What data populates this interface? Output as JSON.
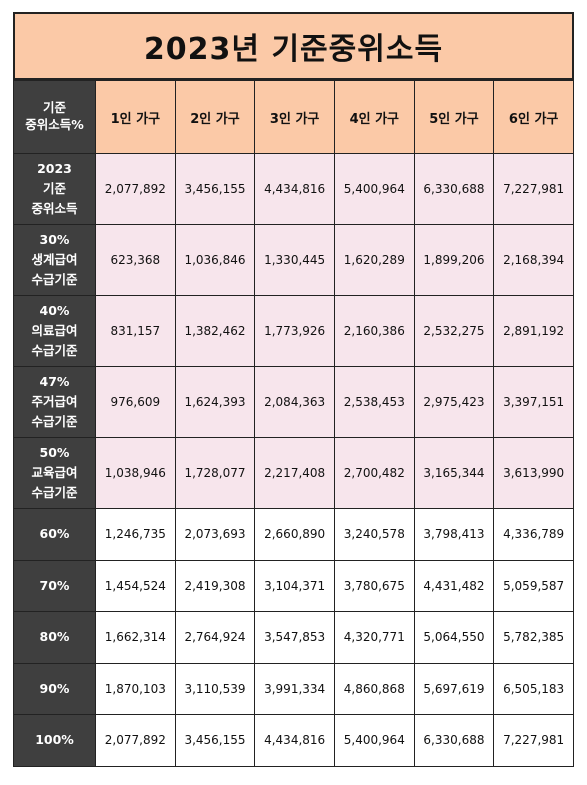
{
  "title": "2023년 기준중위소득",
  "corner_label": [
    "기준",
    "중위소득%"
  ],
  "columns": [
    "1인 가구",
    "2인 가구",
    "3인 가구",
    "4인 가구",
    "5인 가구",
    "6인 가구"
  ],
  "rows": [
    {
      "label": [
        "2023",
        "기준",
        "중위소득"
      ],
      "values": [
        "2,077,892",
        "3,456,155",
        "4,434,816",
        "5,400,964",
        "6,330,688",
        "7,227,981"
      ]
    },
    {
      "label": [
        "30%",
        "생계급여",
        "수급기준"
      ],
      "values": [
        "623,368",
        "1,036,846",
        "1,330,445",
        "1,620,289",
        "1,899,206",
        "2,168,394"
      ]
    },
    {
      "label": [
        "40%",
        "의료급여",
        "수급기준"
      ],
      "values": [
        "831,157",
        "1,382,462",
        "1,773,926",
        "2,160,386",
        "2,532,275",
        "2,891,192"
      ]
    },
    {
      "label": [
        "47%",
        "주거급여",
        "수급기준"
      ],
      "values": [
        "976,609",
        "1,624,393",
        "2,084,363",
        "2,538,453",
        "2,975,423",
        "3,397,151"
      ]
    },
    {
      "label": [
        "50%",
        "교육급여",
        "수급기준"
      ],
      "values": [
        "1,038,946",
        "1,728,077",
        "2,217,408",
        "2,700,482",
        "3,165,344",
        "3,613,990"
      ]
    },
    {
      "label": [
        "60%"
      ],
      "values": [
        "1,246,735",
        "2,073,693",
        "2,660,890",
        "3,240,578",
        "3,798,413",
        "4,336,789"
      ]
    },
    {
      "label": [
        "70%"
      ],
      "values": [
        "1,454,524",
        "2,419,308",
        "3,104,371",
        "3,780,675",
        "4,431,482",
        "5,059,587"
      ]
    },
    {
      "label": [
        "80%"
      ],
      "values": [
        "1,662,314",
        "2,764,924",
        "3,547,853",
        "4,320,771",
        "5,064,550",
        "5,782,385"
      ]
    },
    {
      "label": [
        "90%"
      ],
      "values": [
        "1,870,103",
        "3,110,539",
        "3,991,334",
        "4,860,868",
        "5,697,619",
        "6,505,183"
      ]
    },
    {
      "label": [
        "100%"
      ],
      "values": [
        "2,077,892",
        "3,456,155",
        "4,434,816",
        "5,400,964",
        "6,330,688",
        "7,227,981"
      ]
    }
  ],
  "colors": {
    "header_peach": "#fbc9a7",
    "label_dark": "#3f3f3f",
    "row_pink": "#f7e5ec"
  }
}
